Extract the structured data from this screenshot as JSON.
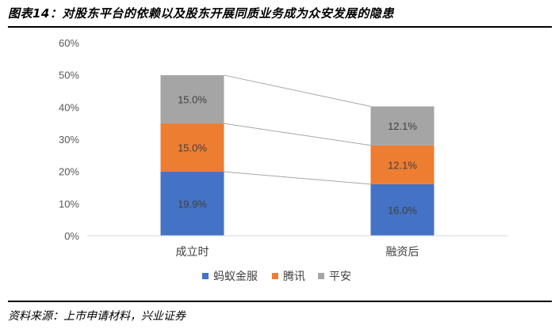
{
  "header": {
    "title": "图表14：对股东平台的依赖以及股东开展同质业务成为众安发展的隐患"
  },
  "footer": {
    "source": "资料来源：上市申请材料，兴业证券"
  },
  "chart_data": {
    "type": "bar",
    "stacked": true,
    "categories": [
      "成立时",
      "融资后"
    ],
    "series": [
      {
        "name": "蚂蚁金服",
        "values": [
          19.9,
          16.0
        ],
        "labels": [
          "19.9%",
          "16.0%"
        ],
        "color": "#4472C4"
      },
      {
        "name": "腾讯",
        "values": [
          15.0,
          12.1
        ],
        "labels": [
          "15.0%",
          "12.1%"
        ],
        "color": "#ED7D31"
      },
      {
        "name": "平安",
        "values": [
          15.0,
          12.1
        ],
        "labels": [
          "15.0%",
          "12.1%"
        ],
        "color": "#A5A5A5"
      }
    ],
    "ylim": [
      0,
      60
    ],
    "yticks": [
      "0%",
      "10%",
      "20%",
      "30%",
      "40%",
      "50%",
      "60%"
    ],
    "grid": false,
    "series_lines": true,
    "legend_position": "bottom"
  }
}
